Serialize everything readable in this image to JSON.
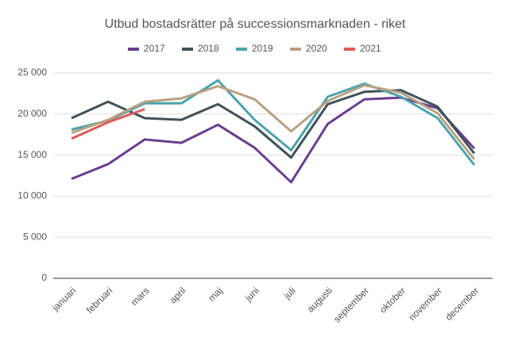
{
  "chart_data": {
    "type": "line",
    "title": "Utbud bostadsrätter på successionsmarknaden - riket",
    "categories": [
      "januari",
      "februari",
      "mars",
      "april",
      "maj",
      "juni",
      "juli",
      "augusti",
      "september",
      "oktober",
      "november",
      "december"
    ],
    "series": [
      {
        "name": "2017",
        "color": "#6a3d8f",
        "values": [
          12100,
          13900,
          16900,
          16500,
          18700,
          15900,
          11700,
          18800,
          21800,
          22000,
          20700,
          15800
        ]
      },
      {
        "name": "2018",
        "color": "#3f5259",
        "values": [
          19500,
          21500,
          19500,
          19300,
          21200,
          18500,
          14700,
          21200,
          22700,
          22900,
          20900,
          15200
        ]
      },
      {
        "name": "2019",
        "color": "#4aa3ad",
        "values": [
          18100,
          19200,
          21300,
          21300,
          24100,
          19300,
          15600,
          22100,
          23700,
          22100,
          19500,
          13800
        ]
      },
      {
        "name": "2020",
        "color": "#b9a07f",
        "values": [
          17700,
          19300,
          21500,
          21900,
          23400,
          21800,
          17900,
          21600,
          23500,
          22600,
          20100,
          14500
        ]
      },
      {
        "name": "2021",
        "color": "#e0595a",
        "values": [
          17000,
          19000,
          20600,
          null,
          null,
          null,
          null,
          null,
          null,
          null,
          null,
          null
        ]
      }
    ],
    "ylim": [
      0,
      25000
    ],
    "yticks": [
      0,
      {
        "value": 5000,
        "label": "5 000"
      },
      {
        "value": 10000,
        "label": "10 000"
      },
      {
        "value": 15000,
        "label": "15 000"
      },
      {
        "value": 20000,
        "label": "20 000"
      },
      {
        "value": 25000,
        "label": "25 000"
      }
    ],
    "grid": true,
    "legend": "top"
  }
}
